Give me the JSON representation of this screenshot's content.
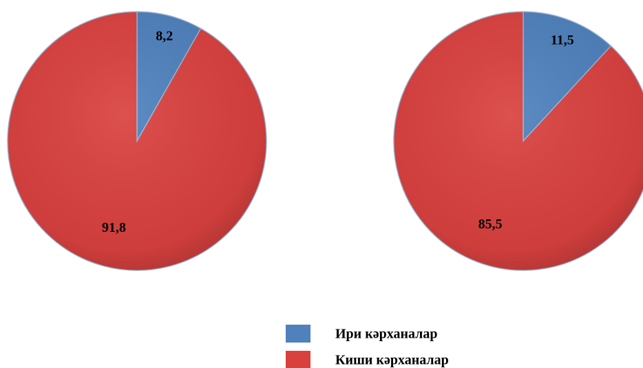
{
  "chart_data": [
    {
      "type": "pie",
      "categories": [
        "Ири кәрханалар",
        "Киши кәрханалар"
      ],
      "values": [
        8.2,
        91.8
      ],
      "value_labels": [
        "8,2",
        "91,8"
      ],
      "colors": [
        "#4f81bd",
        "#d9413f"
      ]
    },
    {
      "type": "pie",
      "categories": [
        "Ири кәрханалар",
        "Киши кәрханалар"
      ],
      "values": [
        11.5,
        85.5
      ],
      "value_labels": [
        "11,5",
        "85,5"
      ],
      "colors": [
        "#4f81bd",
        "#d9413f"
      ]
    }
  ]
}
